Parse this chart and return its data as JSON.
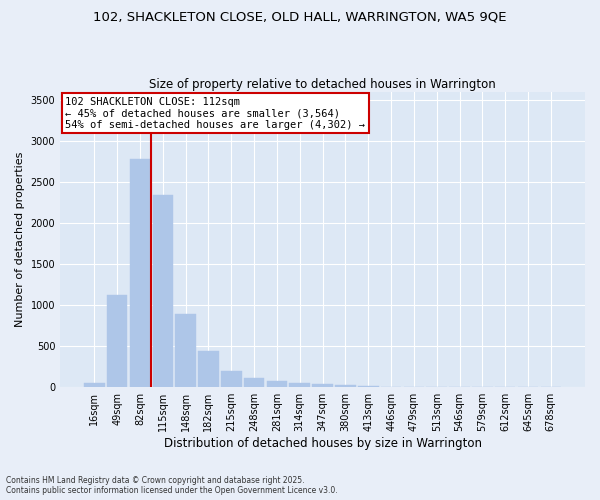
{
  "title1": "102, SHACKLETON CLOSE, OLD HALL, WARRINGTON, WA5 9QE",
  "title2": "Size of property relative to detached houses in Warrington",
  "xlabel": "Distribution of detached houses by size in Warrington",
  "ylabel": "Number of detached properties",
  "categories": [
    "16sqm",
    "49sqm",
    "82sqm",
    "115sqm",
    "148sqm",
    "182sqm",
    "215sqm",
    "248sqm",
    "281sqm",
    "314sqm",
    "347sqm",
    "380sqm",
    "413sqm",
    "446sqm",
    "479sqm",
    "513sqm",
    "546sqm",
    "579sqm",
    "612sqm",
    "645sqm",
    "678sqm"
  ],
  "values": [
    50,
    1120,
    2780,
    2340,
    890,
    440,
    200,
    110,
    75,
    55,
    35,
    25,
    15,
    8,
    5,
    3,
    2,
    1,
    1,
    0,
    0
  ],
  "bar_color": "#aec6e8",
  "bar_edgecolor": "#aec6e8",
  "vline_color": "#cc0000",
  "annotation_title": "102 SHACKLETON CLOSE: 112sqm",
  "annotation_line1": "← 45% of detached houses are smaller (3,564)",
  "annotation_line2": "54% of semi-detached houses are larger (4,302) →",
  "annotation_box_color": "#cc0000",
  "ylim": [
    0,
    3600
  ],
  "yticks": [
    0,
    500,
    1000,
    1500,
    2000,
    2500,
    3000,
    3500
  ],
  "background_color": "#dde8f5",
  "fig_background_color": "#e8eef8",
  "grid_color": "#ffffff",
  "footer1": "Contains HM Land Registry data © Crown copyright and database right 2025.",
  "footer2": "Contains public sector information licensed under the Open Government Licence v3.0."
}
